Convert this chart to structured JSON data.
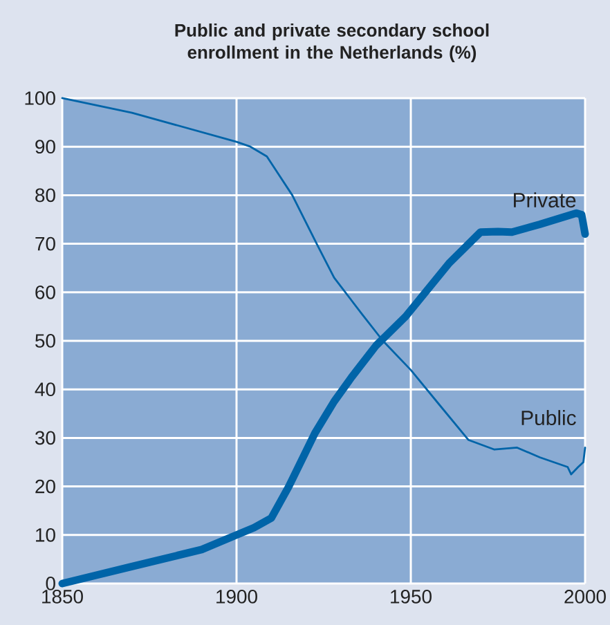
{
  "chart_data": {
    "type": "line",
    "title": "Public and private secondary school enrollment in the Netherlands (%)",
    "xlim": [
      1850,
      2000
    ],
    "xticks": [
      1850,
      1900,
      1950,
      2000
    ],
    "ylim": [
      0,
      100
    ],
    "yticks": [
      0,
      10,
      20,
      30,
      40,
      50,
      60,
      70,
      80,
      90,
      100
    ],
    "grid": true,
    "legend": false,
    "marker": "none",
    "line_style": "solid",
    "series": [
      {
        "name": "Private",
        "color": "#0064a8",
        "x": [
          1850,
          1870,
          1890,
          1900,
          1905,
          1910,
          1915,
          1922.5,
          1928,
          1933,
          1940,
          1948.5,
          1961,
          1970,
          1975,
          1979,
          1987,
          1997.5,
          1999,
          2000
        ],
        "values": [
          0,
          3.5,
          7,
          10,
          11.5,
          13.5,
          20,
          31,
          37.5,
          42.5,
          49,
          55,
          66,
          72.4,
          72.5,
          72.4,
          74,
          76.3,
          76,
          72
        ]
      },
      {
        "name": "Public",
        "color": "#0064a8",
        "x": [
          1850,
          1870,
          1890,
          1900,
          1904,
          1908.7,
          1916,
          1923,
          1928,
          1936,
          1942,
          1950,
          1958,
          1966.5,
          1974,
          1980.5,
          1987,
          1995,
          1996,
          1998,
          1999.5,
          2000
        ],
        "values": [
          100,
          97,
          93,
          91,
          90,
          88,
          80,
          70,
          63,
          55.5,
          50,
          44,
          37,
          29.6,
          27.6,
          28,
          26,
          24,
          22.5,
          24,
          25,
          28
        ]
      }
    ]
  }
}
